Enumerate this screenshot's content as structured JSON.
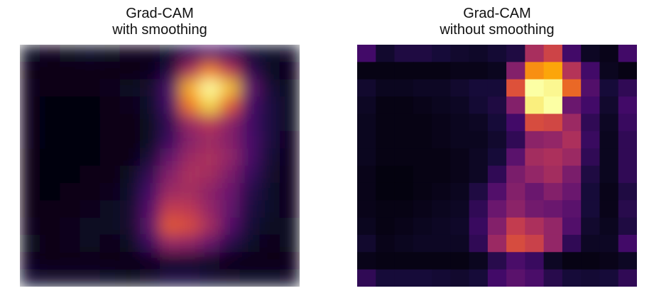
{
  "chart_data": [
    {
      "type": "heatmap",
      "title": "Grad-CAM",
      "subtitle": "with smoothing",
      "colormap": "inferno",
      "interpolation": "smooth",
      "axes_visible": false,
      "grid": false,
      "values": [
        [
          0.07,
          0.05,
          0.06,
          0.07,
          0.06,
          0.05,
          0.05,
          0.07,
          0.16,
          0.26,
          0.18,
          0.09,
          0.07,
          0.08
        ],
        [
          0.03,
          0.03,
          0.03,
          0.03,
          0.04,
          0.04,
          0.05,
          0.12,
          0.45,
          0.72,
          0.5,
          0.16,
          0.06,
          0.05
        ],
        [
          0.05,
          0.03,
          0.03,
          0.03,
          0.05,
          0.06,
          0.08,
          0.22,
          0.82,
          1.0,
          0.86,
          0.28,
          0.1,
          0.06
        ],
        [
          0.05,
          0.02,
          0.02,
          0.02,
          0.04,
          0.05,
          0.07,
          0.2,
          0.7,
          0.9,
          0.62,
          0.22,
          0.12,
          0.06
        ],
        [
          0.05,
          0.02,
          0.02,
          0.02,
          0.03,
          0.04,
          0.06,
          0.16,
          0.42,
          0.5,
          0.38,
          0.2,
          0.12,
          0.06
        ],
        [
          0.05,
          0.02,
          0.02,
          0.02,
          0.03,
          0.03,
          0.06,
          0.18,
          0.36,
          0.42,
          0.36,
          0.22,
          0.12,
          0.05
        ],
        [
          0.04,
          0.02,
          0.02,
          0.02,
          0.03,
          0.04,
          0.1,
          0.28,
          0.42,
          0.46,
          0.4,
          0.22,
          0.1,
          0.05
        ],
        [
          0.04,
          0.02,
          0.02,
          0.03,
          0.04,
          0.06,
          0.16,
          0.36,
          0.46,
          0.44,
          0.34,
          0.18,
          0.08,
          0.05
        ],
        [
          0.04,
          0.02,
          0.03,
          0.04,
          0.05,
          0.07,
          0.2,
          0.42,
          0.44,
          0.38,
          0.3,
          0.14,
          0.07,
          0.05
        ],
        [
          0.04,
          0.03,
          0.04,
          0.05,
          0.06,
          0.08,
          0.24,
          0.52,
          0.5,
          0.4,
          0.28,
          0.12,
          0.07,
          0.05
        ],
        [
          0.05,
          0.04,
          0.05,
          0.06,
          0.06,
          0.08,
          0.26,
          0.62,
          0.58,
          0.44,
          0.24,
          0.1,
          0.06,
          0.06
        ],
        [
          0.06,
          0.04,
          0.05,
          0.06,
          0.05,
          0.06,
          0.18,
          0.4,
          0.38,
          0.28,
          0.14,
          0.07,
          0.05,
          0.06
        ],
        [
          0.05,
          0.03,
          0.03,
          0.03,
          0.03,
          0.03,
          0.05,
          0.08,
          0.08,
          0.06,
          0.04,
          0.03,
          0.03,
          0.04
        ],
        [
          0.1,
          0.08,
          0.08,
          0.08,
          0.07,
          0.06,
          0.08,
          0.12,
          0.12,
          0.1,
          0.08,
          0.07,
          0.07,
          0.08
        ]
      ]
    },
    {
      "type": "heatmap",
      "title": "Grad-CAM",
      "subtitle": "without smoothing",
      "colormap": "inferno",
      "interpolation": "nearest",
      "axes_visible": false,
      "grid": false,
      "values": [
        [
          0.2,
          0.08,
          0.12,
          0.12,
          0.1,
          0.08,
          0.07,
          0.09,
          0.12,
          0.45,
          0.55,
          0.2,
          0.06,
          0.04,
          0.2
        ],
        [
          0.03,
          0.03,
          0.03,
          0.03,
          0.03,
          0.04,
          0.04,
          0.05,
          0.36,
          0.75,
          0.8,
          0.48,
          0.2,
          0.05,
          0.03
        ],
        [
          0.08,
          0.05,
          0.05,
          0.06,
          0.06,
          0.08,
          0.1,
          0.1,
          0.6,
          1.0,
          0.98,
          0.66,
          0.24,
          0.1,
          0.16
        ],
        [
          0.06,
          0.03,
          0.03,
          0.04,
          0.05,
          0.06,
          0.09,
          0.12,
          0.36,
          0.96,
          1.0,
          0.3,
          0.2,
          0.08,
          0.2
        ],
        [
          0.05,
          0.03,
          0.03,
          0.03,
          0.04,
          0.05,
          0.06,
          0.1,
          0.2,
          0.58,
          0.56,
          0.42,
          0.16,
          0.06,
          0.18
        ],
        [
          0.05,
          0.03,
          0.03,
          0.03,
          0.04,
          0.05,
          0.05,
          0.08,
          0.16,
          0.38,
          0.4,
          0.46,
          0.18,
          0.05,
          0.16
        ],
        [
          0.05,
          0.03,
          0.03,
          0.03,
          0.03,
          0.04,
          0.06,
          0.1,
          0.26,
          0.44,
          0.46,
          0.42,
          0.16,
          0.05,
          0.16
        ],
        [
          0.04,
          0.02,
          0.02,
          0.03,
          0.03,
          0.04,
          0.06,
          0.16,
          0.34,
          0.4,
          0.44,
          0.34,
          0.12,
          0.05,
          0.16
        ],
        [
          0.04,
          0.02,
          0.02,
          0.03,
          0.04,
          0.05,
          0.12,
          0.24,
          0.36,
          0.3,
          0.36,
          0.3,
          0.1,
          0.04,
          0.12
        ],
        [
          0.04,
          0.03,
          0.03,
          0.04,
          0.05,
          0.06,
          0.16,
          0.3,
          0.38,
          0.32,
          0.3,
          0.26,
          0.1,
          0.04,
          0.14
        ],
        [
          0.05,
          0.03,
          0.04,
          0.05,
          0.06,
          0.07,
          0.18,
          0.36,
          0.52,
          0.46,
          0.4,
          0.24,
          0.08,
          0.05,
          0.12
        ],
        [
          0.08,
          0.04,
          0.05,
          0.06,
          0.06,
          0.06,
          0.16,
          0.42,
          0.58,
          0.54,
          0.4,
          0.16,
          0.06,
          0.06,
          0.2
        ],
        [
          0.04,
          0.03,
          0.03,
          0.03,
          0.03,
          0.03,
          0.05,
          0.14,
          0.22,
          0.18,
          0.06,
          0.03,
          0.03,
          0.04,
          0.06
        ],
        [
          0.16,
          0.1,
          0.1,
          0.1,
          0.09,
          0.08,
          0.1,
          0.2,
          0.26,
          0.22,
          0.14,
          0.1,
          0.09,
          0.1,
          0.16
        ]
      ]
    }
  ]
}
